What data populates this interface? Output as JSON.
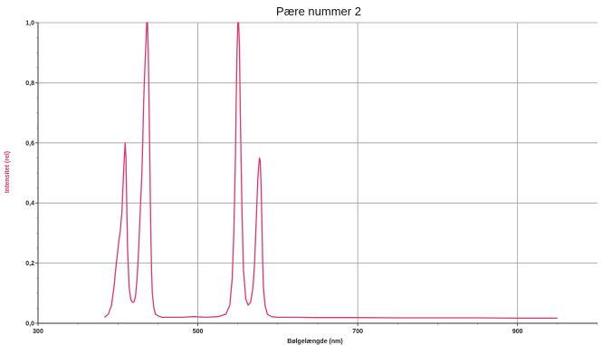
{
  "chart_data": {
    "type": "line",
    "title": "Pære nummer 2",
    "xlabel": "Bølgelængde (nm)",
    "ylabel": "Intensitet (rel)",
    "xlim": [
      300,
      1000
    ],
    "ylim": [
      0,
      1.0
    ],
    "x_ticks": [
      "300",
      "500",
      "700",
      "900"
    ],
    "x_tick_values": [
      300,
      500,
      700,
      900
    ],
    "y_ticks": [
      "0,0",
      "0,2",
      "0,4",
      "0,6",
      "0,8",
      "1,0"
    ],
    "y_tick_values": [
      0,
      0.2,
      0.4,
      0.6,
      0.8,
      1.0
    ],
    "grid": true,
    "series_color": "#e0356a",
    "series": [
      {
        "x": [
          383,
          388,
          392,
          395,
          398,
          401,
          403,
          405,
          407,
          409,
          410,
          411,
          412,
          414,
          416,
          418,
          420,
          422,
          424,
          426,
          428,
          430,
          431,
          432,
          433,
          434,
          435,
          436,
          437,
          438,
          439,
          440,
          441,
          442,
          443,
          445,
          447,
          450,
          455,
          465,
          480,
          495,
          510,
          525,
          535,
          540,
          543,
          545,
          547,
          548,
          549,
          550,
          551,
          552,
          553,
          555,
          557,
          560,
          563,
          566,
          569,
          571,
          573,
          575,
          577,
          578,
          579,
          580,
          581,
          582,
          584,
          587,
          592,
          600,
          625,
          650,
          700,
          750,
          800,
          850,
          900,
          950
        ],
        "y": [
          0.02,
          0.03,
          0.06,
          0.12,
          0.2,
          0.27,
          0.31,
          0.37,
          0.5,
          0.6,
          0.55,
          0.4,
          0.25,
          0.12,
          0.08,
          0.07,
          0.07,
          0.09,
          0.15,
          0.25,
          0.38,
          0.5,
          0.6,
          0.72,
          0.8,
          0.87,
          0.93,
          1.0,
          1.0,
          0.9,
          0.72,
          0.52,
          0.32,
          0.18,
          0.1,
          0.05,
          0.03,
          0.025,
          0.02,
          0.02,
          0.02,
          0.022,
          0.02,
          0.022,
          0.03,
          0.06,
          0.15,
          0.3,
          0.55,
          0.75,
          0.9,
          1.0,
          1.0,
          0.92,
          0.72,
          0.4,
          0.18,
          0.08,
          0.06,
          0.07,
          0.12,
          0.2,
          0.34,
          0.48,
          0.55,
          0.54,
          0.47,
          0.35,
          0.22,
          0.12,
          0.06,
          0.03,
          0.022,
          0.02,
          0.02,
          0.019,
          0.019,
          0.018,
          0.018,
          0.018,
          0.017,
          0.017
        ]
      }
    ]
  }
}
